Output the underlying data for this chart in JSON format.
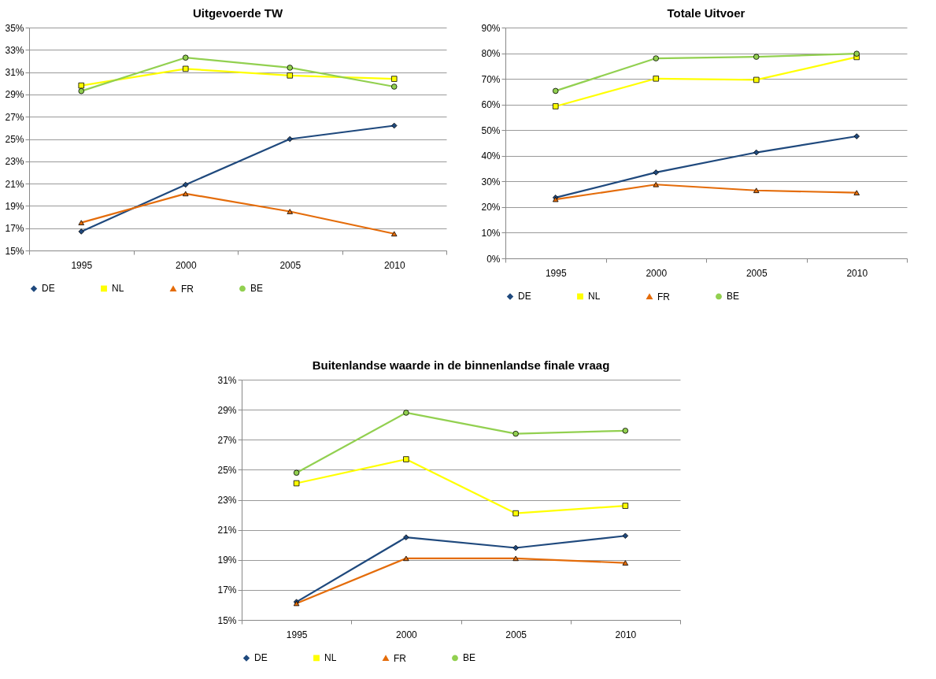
{
  "chart_data": [
    {
      "type": "line",
      "title": "Uitgevoerde TW",
      "categories": [
        "1995",
        "2000",
        "2005",
        "2010"
      ],
      "ylim": [
        15,
        35
      ],
      "yticks": [
        {
          "value": 15,
          "label": "15%"
        },
        {
          "value": 17,
          "label": "17%"
        },
        {
          "value": 19,
          "label": "19%"
        },
        {
          "value": 21,
          "label": "21%"
        },
        {
          "value": 23,
          "label": "23%"
        },
        {
          "value": 25,
          "label": "25%"
        },
        {
          "value": 27,
          "label": "27%"
        },
        {
          "value": 29,
          "label": "29%"
        },
        {
          "value": 31,
          "label": "31%"
        },
        {
          "value": 33,
          "label": "33%"
        },
        {
          "value": 35,
          "label": "35%"
        }
      ],
      "grid": "y",
      "legend": "bottom",
      "series": [
        {
          "name": "DE",
          "color": "#1f497d",
          "marker": "diamond",
          "values": [
            16.7,
            20.9,
            25.0,
            26.2
          ]
        },
        {
          "name": "NL",
          "color": "#ffff00",
          "marker": "square",
          "values": [
            29.8,
            31.3,
            30.7,
            30.4
          ]
        },
        {
          "name": "FR",
          "color": "#e46c0a",
          "marker": "triangle",
          "values": [
            17.5,
            20.1,
            18.5,
            16.5
          ]
        },
        {
          "name": "BE",
          "color": "#92d050",
          "marker": "circle",
          "values": [
            29.3,
            32.3,
            31.4,
            29.7
          ]
        }
      ]
    },
    {
      "type": "line",
      "title": "Totale Uitvoer",
      "categories": [
        "1995",
        "2000",
        "2005",
        "2010"
      ],
      "ylim": [
        0,
        90
      ],
      "yticks": [
        {
          "value": 0,
          "label": "0%"
        },
        {
          "value": 10,
          "label": "10%"
        },
        {
          "value": 20,
          "label": "20%"
        },
        {
          "value": 30,
          "label": "30%"
        },
        {
          "value": 40,
          "label": "40%"
        },
        {
          "value": 50,
          "label": "50%"
        },
        {
          "value": 60,
          "label": "60%"
        },
        {
          "value": 70,
          "label": "70%"
        },
        {
          "value": 80,
          "label": "80%"
        },
        {
          "value": 90,
          "label": "90%"
        }
      ],
      "grid": "y",
      "legend": "bottom",
      "series": [
        {
          "name": "DE",
          "color": "#1f497d",
          "marker": "diamond",
          "values": [
            23.7,
            33.5,
            41.3,
            47.6
          ]
        },
        {
          "name": "NL",
          "color": "#ffff00",
          "marker": "square",
          "values": [
            59.3,
            70.1,
            69.6,
            78.5
          ]
        },
        {
          "name": "FR",
          "color": "#e46c0a",
          "marker": "triangle",
          "values": [
            23.0,
            28.8,
            26.5,
            25.6
          ]
        },
        {
          "name": "BE",
          "color": "#92d050",
          "marker": "circle",
          "values": [
            65.3,
            78.0,
            78.6,
            79.8
          ]
        }
      ]
    },
    {
      "type": "line",
      "title": "Buitenlandse waarde in de binnenlandse finale vraag",
      "categories": [
        "1995",
        "2000",
        "2005",
        "2010"
      ],
      "ylim": [
        15,
        31
      ],
      "yticks": [
        {
          "value": 15,
          "label": "15%"
        },
        {
          "value": 17,
          "label": "17%"
        },
        {
          "value": 19,
          "label": "19%"
        },
        {
          "value": 21,
          "label": "21%"
        },
        {
          "value": 23,
          "label": "23%"
        },
        {
          "value": 25,
          "label": "25%"
        },
        {
          "value": 27,
          "label": "27%"
        },
        {
          "value": 29,
          "label": "29%"
        },
        {
          "value": 31,
          "label": "31%"
        }
      ],
      "grid": "y",
      "legend": "bottom",
      "series": [
        {
          "name": "DE",
          "color": "#1f497d",
          "marker": "diamond",
          "values": [
            16.2,
            20.5,
            19.8,
            20.6
          ]
        },
        {
          "name": "NL",
          "color": "#ffff00",
          "marker": "square",
          "values": [
            24.1,
            25.7,
            22.1,
            22.6
          ]
        },
        {
          "name": "FR",
          "color": "#e46c0a",
          "marker": "triangle",
          "values": [
            16.1,
            19.1,
            19.1,
            18.8
          ]
        },
        {
          "name": "BE",
          "color": "#92d050",
          "marker": "circle",
          "values": [
            24.8,
            28.8,
            27.4,
            27.6
          ]
        }
      ]
    }
  ]
}
